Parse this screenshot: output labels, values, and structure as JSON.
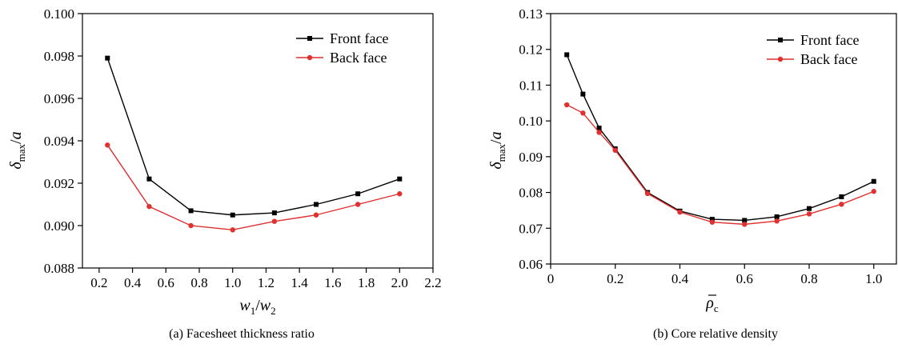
{
  "chart_data": [
    {
      "type": "line",
      "caption": "(a) Facesheet thickness ratio",
      "xlabel": "w1/w2",
      "ylabel": "δmax/a",
      "xlim": [
        0.1,
        2.2
      ],
      "ylim": [
        0.088,
        0.1
      ],
      "xticks": [
        "0.2",
        "0.4",
        "0.6",
        "0.8",
        "1.0",
        "1.2",
        "1.4",
        "1.6",
        "1.8",
        "2.0",
        "2.2"
      ],
      "yticks": [
        "0.088",
        "0.090",
        "0.092",
        "0.094",
        "0.096",
        "0.098",
        "0.100"
      ],
      "x": [
        0.25,
        0.5,
        0.75,
        1.0,
        1.25,
        1.5,
        1.75,
        2.0
      ],
      "grid": false,
      "legend_position": "top-right",
      "series": [
        {
          "name": "Front face",
          "color": "#000000",
          "marker": "square",
          "values": [
            0.0979,
            0.0922,
            0.0907,
            0.0905,
            0.0906,
            0.091,
            0.0915,
            0.0922
          ]
        },
        {
          "name": "Back face",
          "color": "#e03030",
          "marker": "circle",
          "values": [
            0.0938,
            0.0909,
            0.09,
            0.0898,
            0.0902,
            0.0905,
            0.091,
            0.0915
          ]
        }
      ]
    },
    {
      "type": "line",
      "caption": "(b) Core relative density",
      "xlabel": "ρc",
      "ylabel": "δmax/a",
      "xlim": [
        0.0,
        1.07
      ],
      "ylim": [
        0.06,
        0.13
      ],
      "xticks": [
        "0",
        "0.2",
        "0.4",
        "0.6",
        "0.8",
        "1.0"
      ],
      "yticks": [
        "0.06",
        "0.07",
        "0.08",
        "0.09",
        "0.10",
        "0.11",
        "0.12",
        "0.13"
      ],
      "grid": false,
      "legend_position": "top-right",
      "series": [
        {
          "name": "Front face",
          "color": "#000000",
          "marker": "square",
          "x": [
            0.05,
            0.1,
            0.15,
            0.2,
            0.3,
            0.4,
            0.5,
            0.6,
            0.7,
            0.8,
            0.9,
            1.0
          ],
          "values": [
            0.1185,
            0.1075,
            0.098,
            0.0922,
            0.08,
            0.0748,
            0.0725,
            0.0722,
            0.0732,
            0.0755,
            0.0788,
            0.0831
          ]
        },
        {
          "name": "Back face",
          "color": "#e03030",
          "marker": "circle",
          "x": [
            0.05,
            0.1,
            0.15,
            0.2,
            0.3,
            0.4,
            0.5,
            0.6,
            0.7,
            0.8,
            0.9,
            1.0
          ],
          "values": [
            0.1045,
            0.1022,
            0.0968,
            0.0918,
            0.0797,
            0.0745,
            0.0717,
            0.0711,
            0.072,
            0.074,
            0.0767,
            0.0803
          ]
        }
      ]
    }
  ]
}
